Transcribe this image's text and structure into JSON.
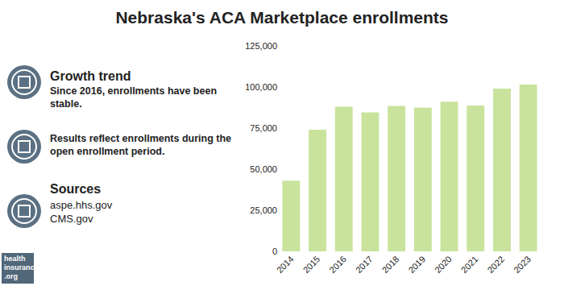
{
  "chart_data": {
    "type": "bar",
    "title": "Nebraska's ACA Marketplace enrollments",
    "categories": [
      "2014",
      "2015",
      "2016",
      "2017",
      "2018",
      "2019",
      "2020",
      "2021",
      "2022",
      "2023"
    ],
    "values": [
      43000,
      74000,
      88000,
      84500,
      88500,
      87500,
      91000,
      88700,
      99000,
      101500
    ],
    "color": "#c9e39d",
    "ylim": [
      0,
      125000
    ],
    "yticks": [
      0,
      {
        "value": 25000,
        "label": "25,000"
      },
      {
        "value": 50000,
        "label": "50,000"
      },
      {
        "value": 75000,
        "label": "75,000"
      },
      {
        "value": 100000,
        "label": "100,000"
      },
      {
        "value": 125000,
        "label": "125,000"
      }
    ],
    "grid": false
  },
  "sidebar": {
    "sections": [
      {
        "heading": "Growth trend",
        "text": "Since 2016, enrollments have been stable."
      },
      {
        "text": "Results reflect enrollments during the open enrollment period."
      },
      {
        "heading": "Sources",
        "lines": [
          "aspe.hhs.gov",
          "CMS.gov"
        ]
      }
    ]
  },
  "logo": [
    "health",
    "insurance",
    ".org"
  ]
}
